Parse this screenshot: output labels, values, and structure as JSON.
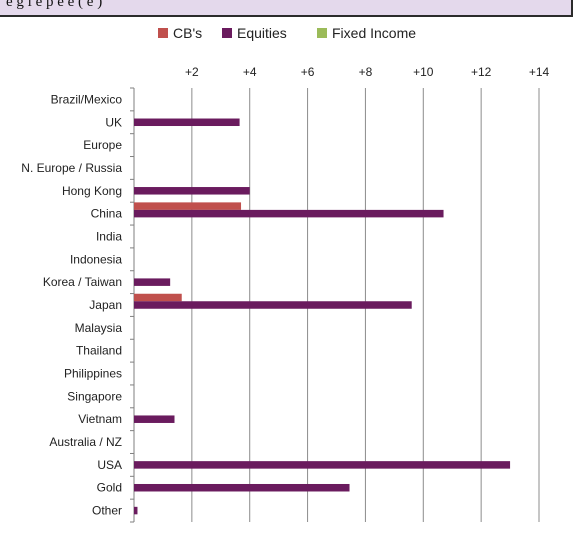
{
  "header": {
    "text": "e g i  e  p  e   e   (   e  )"
  },
  "chart_data": {
    "type": "bar",
    "orientation": "horizontal",
    "title": "",
    "xlabel": "",
    "ylabel": "",
    "xlim": [
      0,
      14
    ],
    "xticks": [
      2,
      4,
      6,
      8,
      10,
      12,
      14
    ],
    "xtick_labels": [
      "+2",
      "+4",
      "+6",
      "+8",
      "+10",
      "+12",
      "+14"
    ],
    "grid": true,
    "legend_position": "top",
    "categories": [
      "Brazil/Mexico",
      "UK",
      "Europe",
      "N. Europe / Russia",
      "Hong Kong",
      "China",
      "India",
      "Indonesia",
      "Korea / Taiwan",
      "Japan",
      "Malaysia",
      "Thailand",
      "Philippines",
      "Singapore",
      "Vietnam",
      "Australia / NZ",
      "USA",
      "Gold",
      "Other"
    ],
    "series": [
      {
        "name": "CB's",
        "color": "#c0504d",
        "values": [
          0,
          0,
          0,
          0,
          0,
          3.7,
          0,
          0,
          0,
          1.65,
          0,
          0,
          0,
          0,
          0,
          0,
          0,
          0,
          0
        ]
      },
      {
        "name": "Equities",
        "color": "#6a1b5e",
        "values": [
          0,
          3.65,
          0,
          0,
          4.0,
          10.7,
          0,
          0,
          1.25,
          9.6,
          0,
          0,
          0,
          0,
          1.4,
          0,
          13.0,
          7.45,
          0.12
        ]
      },
      {
        "name": "Fixed Income",
        "color": "#9bbb59",
        "values": [
          0,
          0,
          0,
          0,
          0,
          0,
          0,
          0,
          0,
          0,
          0,
          0,
          0,
          0,
          0,
          0,
          0,
          0,
          0
        ]
      }
    ]
  }
}
